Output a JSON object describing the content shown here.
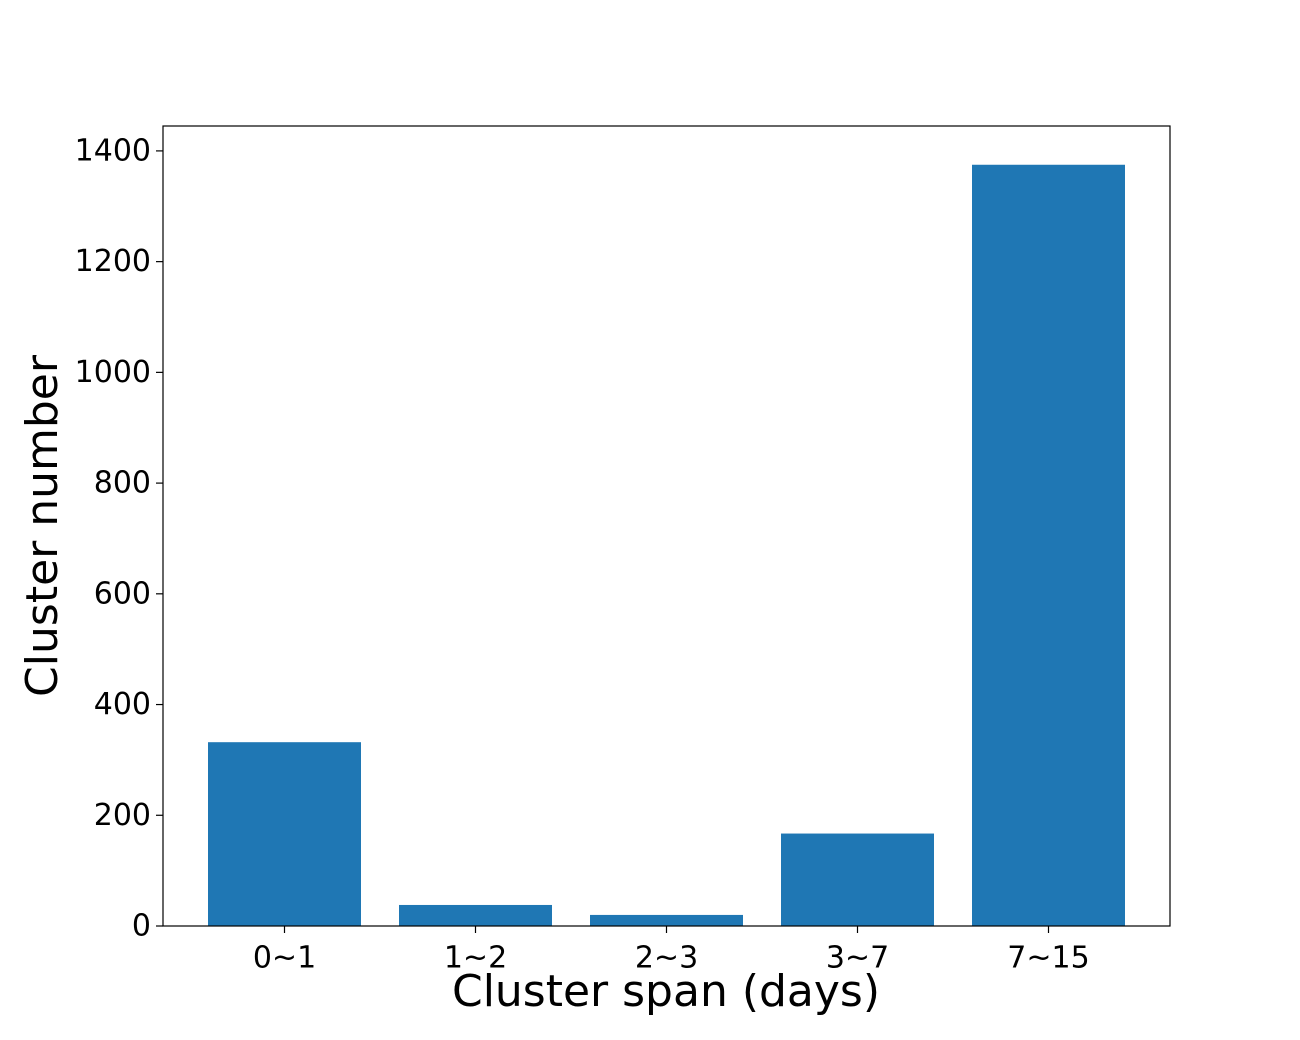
{
  "chart_data": {
    "type": "bar",
    "categories": [
      "0~1",
      "1~2",
      "2~3",
      "3~7",
      "7~15"
    ],
    "values": [
      332,
      38,
      20,
      167,
      1375
    ],
    "title": "",
    "xlabel": "Cluster span (days)",
    "ylabel": "Cluster number",
    "ylim": [
      0,
      1445
    ],
    "yticks": [
      0,
      200,
      400,
      600,
      800,
      1000,
      1200,
      1400
    ],
    "grid": false,
    "legend": "none",
    "bar_color": "#1f77b4"
  }
}
